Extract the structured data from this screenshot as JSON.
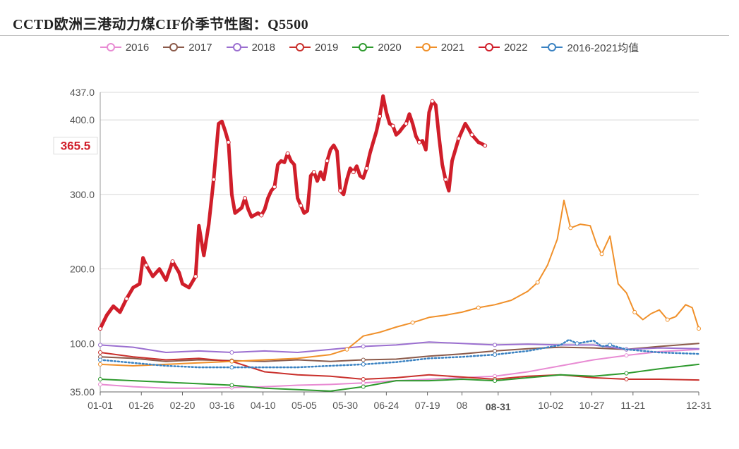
{
  "title": "CCTD欧洲三港动力煤CIF价季节性图：Q5500",
  "chart_data": {
    "type": "line",
    "title": "CCTD欧洲三港动力煤CIF价季节性图：Q5500",
    "xlabel": "",
    "ylabel": "",
    "ylim": [
      35,
      437
    ],
    "y_ticks": [
      "437.0",
      "400.0",
      "300.0",
      "200.0",
      "100.0",
      "35.00"
    ],
    "y_tick_values": [
      437,
      400,
      300,
      200,
      100,
      35
    ],
    "x_tick_labels": [
      "01-01",
      "01-26",
      "02-20",
      "03-16",
      "04-10",
      "05-05",
      "05-30",
      "06-24",
      "07-19",
      "08",
      "08-31",
      "10-02",
      "10-27",
      "11-21",
      "12-31"
    ],
    "x_tick_days": [
      0,
      25,
      50,
      74,
      99,
      124,
      149,
      174,
      199,
      220,
      242,
      274,
      299,
      324,
      364
    ],
    "highlight_x_label": "08-31",
    "current_value_label": "365.5",
    "current_value": 365.5,
    "grid": true,
    "legend_position": "top-center",
    "series": [
      {
        "name": "2016",
        "color": "#e88bd3",
        "points": [
          [
            0,
            45
          ],
          [
            20,
            42
          ],
          [
            40,
            40
          ],
          [
            60,
            40
          ],
          [
            80,
            41
          ],
          [
            100,
            42
          ],
          [
            120,
            44
          ],
          [
            140,
            45
          ],
          [
            160,
            47
          ],
          [
            180,
            50
          ],
          [
            200,
            52
          ],
          [
            220,
            54
          ],
          [
            240,
            56
          ],
          [
            260,
            62
          ],
          [
            280,
            70
          ],
          [
            300,
            78
          ],
          [
            320,
            84
          ],
          [
            340,
            89
          ],
          [
            364,
            92
          ]
        ]
      },
      {
        "name": "2017",
        "color": "#8b5a4a",
        "points": [
          [
            0,
            82
          ],
          [
            20,
            80
          ],
          [
            40,
            76
          ],
          [
            60,
            78
          ],
          [
            80,
            77
          ],
          [
            100,
            76
          ],
          [
            120,
            78
          ],
          [
            140,
            76
          ],
          [
            160,
            78
          ],
          [
            180,
            79
          ],
          [
            200,
            83
          ],
          [
            220,
            86
          ],
          [
            240,
            90
          ],
          [
            260,
            93
          ],
          [
            280,
            95
          ],
          [
            300,
            94
          ],
          [
            320,
            92
          ],
          [
            340,
            96
          ],
          [
            364,
            100
          ]
        ]
      },
      {
        "name": "2018",
        "color": "#9b6fd0",
        "points": [
          [
            0,
            98
          ],
          [
            20,
            95
          ],
          [
            40,
            88
          ],
          [
            60,
            90
          ],
          [
            80,
            88
          ],
          [
            100,
            90
          ],
          [
            120,
            88
          ],
          [
            140,
            92
          ],
          [
            160,
            96
          ],
          [
            180,
            98
          ],
          [
            200,
            102
          ],
          [
            220,
            100
          ],
          [
            240,
            98
          ],
          [
            260,
            99
          ],
          [
            280,
            98
          ],
          [
            300,
            98
          ],
          [
            320,
            92
          ],
          [
            340,
            94
          ],
          [
            364,
            93
          ]
        ]
      },
      {
        "name": "2019",
        "color": "#c9302c",
        "points": [
          [
            0,
            88
          ],
          [
            20,
            82
          ],
          [
            40,
            78
          ],
          [
            60,
            80
          ],
          [
            80,
            76
          ],
          [
            100,
            62
          ],
          [
            120,
            58
          ],
          [
            140,
            56
          ],
          [
            160,
            52
          ],
          [
            180,
            54
          ],
          [
            200,
            58
          ],
          [
            220,
            55
          ],
          [
            240,
            52
          ],
          [
            260,
            56
          ],
          [
            280,
            58
          ],
          [
            300,
            54
          ],
          [
            320,
            52
          ],
          [
            340,
            52
          ],
          [
            364,
            51
          ]
        ]
      },
      {
        "name": "2020",
        "color": "#2e9a2e",
        "points": [
          [
            0,
            52
          ],
          [
            20,
            50
          ],
          [
            40,
            48
          ],
          [
            60,
            46
          ],
          [
            80,
            44
          ],
          [
            100,
            40
          ],
          [
            120,
            38
          ],
          [
            140,
            36
          ],
          [
            160,
            42
          ],
          [
            180,
            50
          ],
          [
            200,
            50
          ],
          [
            220,
            52
          ],
          [
            240,
            50
          ],
          [
            260,
            54
          ],
          [
            280,
            58
          ],
          [
            300,
            56
          ],
          [
            320,
            60
          ],
          [
            340,
            66
          ],
          [
            364,
            72
          ]
        ]
      },
      {
        "name": "2021",
        "color": "#f0902a",
        "points": [
          [
            0,
            72
          ],
          [
            20,
            70
          ],
          [
            40,
            72
          ],
          [
            60,
            74
          ],
          [
            80,
            76
          ],
          [
            100,
            78
          ],
          [
            120,
            80
          ],
          [
            140,
            85
          ],
          [
            150,
            92
          ],
          [
            160,
            110
          ],
          [
            170,
            115
          ],
          [
            180,
            122
          ],
          [
            190,
            128
          ],
          [
            200,
            135
          ],
          [
            210,
            138
          ],
          [
            220,
            142
          ],
          [
            230,
            148
          ],
          [
            240,
            152
          ],
          [
            250,
            158
          ],
          [
            260,
            170
          ],
          [
            266,
            182
          ],
          [
            272,
            205
          ],
          [
            278,
            240
          ],
          [
            282,
            292
          ],
          [
            286,
            255
          ],
          [
            292,
            260
          ],
          [
            298,
            258
          ],
          [
            302,
            232
          ],
          [
            305,
            220
          ],
          [
            310,
            244
          ],
          [
            315,
            180
          ],
          [
            320,
            168
          ],
          [
            325,
            142
          ],
          [
            330,
            132
          ],
          [
            335,
            140
          ],
          [
            340,
            145
          ],
          [
            345,
            132
          ],
          [
            350,
            136
          ],
          [
            356,
            152
          ],
          [
            360,
            148
          ],
          [
            364,
            120
          ]
        ]
      },
      {
        "name": "2022",
        "color": "#d01e2a",
        "points": [
          [
            0,
            120
          ],
          [
            4,
            138
          ],
          [
            8,
            150
          ],
          [
            12,
            142
          ],
          [
            16,
            160
          ],
          [
            20,
            175
          ],
          [
            24,
            180
          ],
          [
            26,
            215
          ],
          [
            28,
            205
          ],
          [
            32,
            190
          ],
          [
            36,
            200
          ],
          [
            40,
            185
          ],
          [
            44,
            210
          ],
          [
            48,
            195
          ],
          [
            50,
            180
          ],
          [
            54,
            175
          ],
          [
            58,
            190
          ],
          [
            60,
            258
          ],
          [
            63,
            218
          ],
          [
            66,
            260
          ],
          [
            69,
            320
          ],
          [
            72,
            395
          ],
          [
            74,
            398
          ],
          [
            76,
            385
          ],
          [
            78,
            370
          ],
          [
            80,
            300
          ],
          [
            82,
            275
          ],
          [
            86,
            282
          ],
          [
            88,
            295
          ],
          [
            90,
            280
          ],
          [
            92,
            270
          ],
          [
            96,
            275
          ],
          [
            98,
            272
          ],
          [
            100,
            280
          ],
          [
            102,
            295
          ],
          [
            104,
            305
          ],
          [
            106,
            310
          ],
          [
            108,
            340
          ],
          [
            110,
            345
          ],
          [
            112,
            343
          ],
          [
            114,
            355
          ],
          [
            116,
            345
          ],
          [
            118,
            340
          ],
          [
            120,
            295
          ],
          [
            122,
            285
          ],
          [
            124,
            275
          ],
          [
            126,
            278
          ],
          [
            128,
            325
          ],
          [
            130,
            330
          ],
          [
            132,
            318
          ],
          [
            134,
            330
          ],
          [
            136,
            320
          ],
          [
            138,
            345
          ],
          [
            140,
            360
          ],
          [
            142,
            366
          ],
          [
            144,
            358
          ],
          [
            146,
            305
          ],
          [
            148,
            300
          ],
          [
            150,
            320
          ],
          [
            152,
            335
          ],
          [
            154,
            330
          ],
          [
            156,
            338
          ],
          [
            158,
            325
          ],
          [
            160,
            322
          ],
          [
            162,
            335
          ],
          [
            164,
            355
          ],
          [
            166,
            370
          ],
          [
            168,
            385
          ],
          [
            170,
            405
          ],
          [
            172,
            432
          ],
          [
            174,
            410
          ],
          [
            176,
            395
          ],
          [
            178,
            392
          ],
          [
            180,
            380
          ],
          [
            182,
            384
          ],
          [
            184,
            390
          ],
          [
            186,
            395
          ],
          [
            188,
            408
          ],
          [
            190,
            395
          ],
          [
            192,
            378
          ],
          [
            194,
            370
          ],
          [
            196,
            372
          ],
          [
            198,
            360
          ],
          [
            200,
            410
          ],
          [
            202,
            425
          ],
          [
            204,
            420
          ],
          [
            206,
            378
          ],
          [
            208,
            340
          ],
          [
            210,
            320
          ],
          [
            212,
            305
          ],
          [
            214,
            345
          ],
          [
            216,
            360
          ],
          [
            218,
            375
          ],
          [
            220,
            385
          ],
          [
            222,
            395
          ],
          [
            224,
            388
          ],
          [
            226,
            380
          ],
          [
            228,
            375
          ],
          [
            230,
            370
          ],
          [
            232,
            368
          ],
          [
            234,
            365.5
          ]
        ]
      },
      {
        "name": "2016-2021均值",
        "color": "#3a82c2",
        "dashed": true,
        "points": [
          [
            0,
            78
          ],
          [
            20,
            74
          ],
          [
            40,
            70
          ],
          [
            60,
            68
          ],
          [
            80,
            68
          ],
          [
            100,
            68
          ],
          [
            120,
            68
          ],
          [
            140,
            70
          ],
          [
            160,
            72
          ],
          [
            180,
            75
          ],
          [
            200,
            80
          ],
          [
            220,
            82
          ],
          [
            240,
            85
          ],
          [
            260,
            90
          ],
          [
            280,
            98
          ],
          [
            285,
            105
          ],
          [
            290,
            100
          ],
          [
            295,
            102
          ],
          [
            300,
            104
          ],
          [
            305,
            96
          ],
          [
            310,
            98
          ],
          [
            320,
            92
          ],
          [
            340,
            88
          ],
          [
            364,
            86
          ]
        ]
      }
    ]
  }
}
